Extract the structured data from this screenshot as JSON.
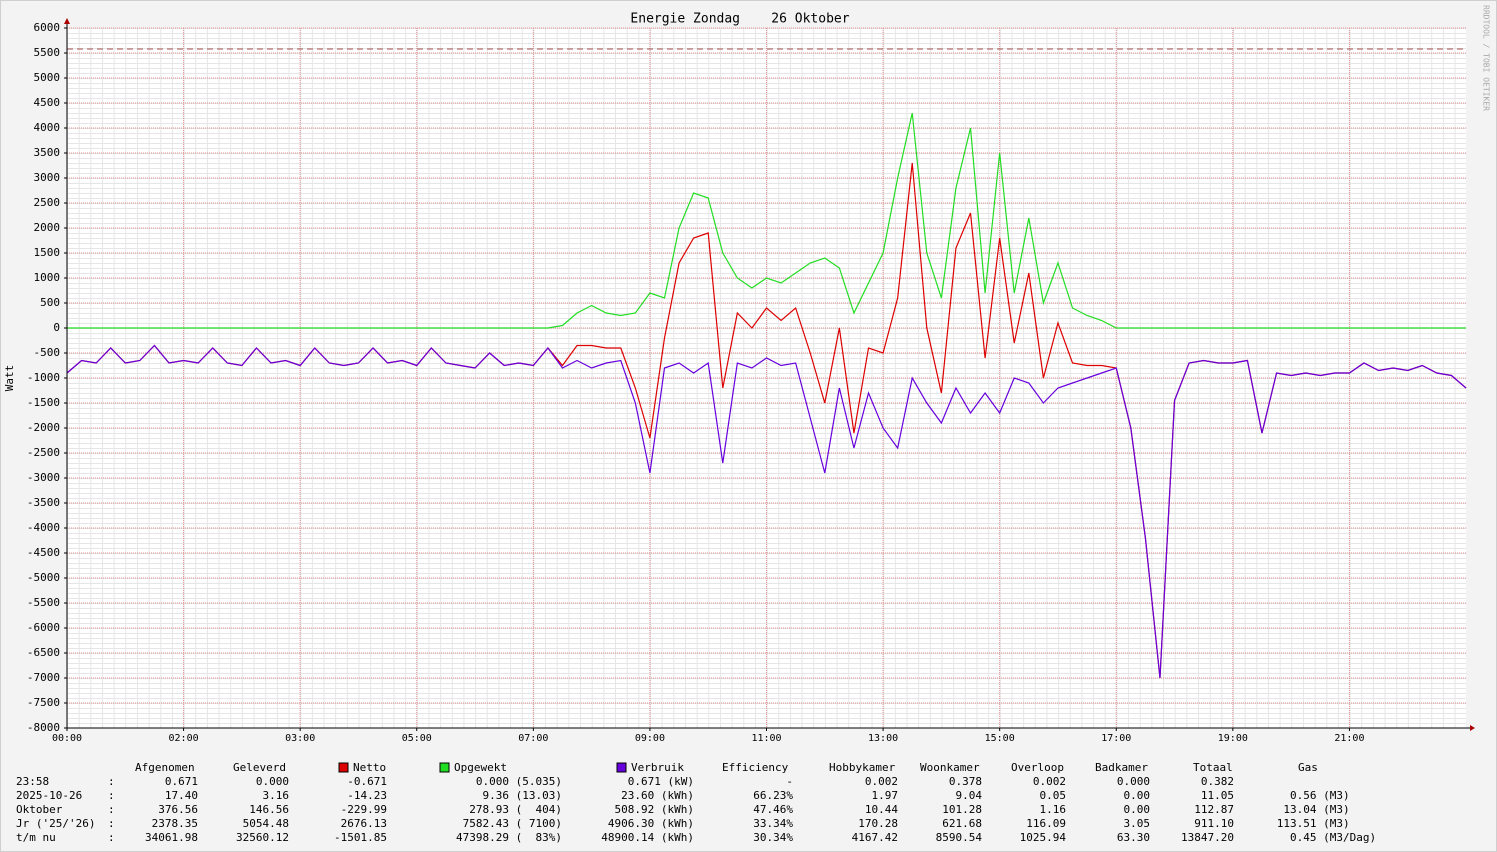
{
  "chart_data": {
    "type": "line",
    "title": "Energie Zondag    26 Oktober",
    "y_label": "Watt",
    "watermark": "RRDTOOL / TOBI OETIKER",
    "xlim": [
      0,
      24
    ],
    "xticks": [
      {
        "value": 0,
        "label": "00:00"
      },
      {
        "value": 2,
        "label": "02:00"
      },
      {
        "value": 4,
        "label": "03:00"
      },
      {
        "value": 6,
        "label": "05:00"
      },
      {
        "value": 8,
        "label": "07:00"
      },
      {
        "value": 10,
        "label": "09:00"
      },
      {
        "value": 12,
        "label": "11:00"
      },
      {
        "value": 14,
        "label": "13:00"
      },
      {
        "value": 16,
        "label": "15:00"
      },
      {
        "value": 18,
        "label": "17:00"
      },
      {
        "value": 20,
        "label": "19:00"
      },
      {
        "value": 22,
        "label": "21:00"
      }
    ],
    "ylim": [
      -8000,
      6000
    ],
    "yticks": [
      -8000,
      -7500,
      -7000,
      -6500,
      -6000,
      -5500,
      -5000,
      -4500,
      -4000,
      -3500,
      -3000,
      -2500,
      -2000,
      -1500,
      -1000,
      -500,
      0,
      500,
      1000,
      1500,
      2000,
      2500,
      3000,
      3500,
      4000,
      4500,
      5000,
      5500,
      6000
    ],
    "grid": true,
    "reference_line": 5580,
    "reference_color": "#a05050",
    "x": [
      0,
      0.25,
      0.5,
      0.75,
      1,
      1.25,
      1.5,
      1.75,
      2,
      2.25,
      2.5,
      2.75,
      3,
      3.25,
      3.5,
      3.75,
      4,
      4.25,
      4.5,
      4.75,
      5,
      5.25,
      5.5,
      5.75,
      6,
      6.25,
      6.5,
      6.75,
      7,
      7.25,
      7.5,
      7.75,
      8,
      8.25,
      8.5,
      8.75,
      9,
      9.25,
      9.5,
      9.75,
      10,
      10.25,
      10.5,
      10.75,
      11,
      11.25,
      11.5,
      11.75,
      12,
      12.25,
      12.5,
      12.75,
      13,
      13.25,
      13.5,
      13.75,
      14,
      14.25,
      14.5,
      14.75,
      15,
      15.25,
      15.5,
      15.75,
      16,
      16.25,
      16.5,
      16.75,
      17,
      17.25,
      17.5,
      17.75,
      18,
      18.25,
      18.5,
      18.75,
      19,
      19.25,
      19.5,
      19.75,
      20,
      20.25,
      20.5,
      20.75,
      21,
      21.25,
      21.5,
      21.75,
      22,
      22.25,
      22.5,
      22.75,
      23,
      23.25,
      23.5,
      23.75,
      24
    ],
    "series": [
      {
        "name": "Netto",
        "color": "#dd0000",
        "values": [
          -900,
          -650,
          -700,
          -400,
          -700,
          -650,
          -350,
          -700,
          -650,
          -700,
          -400,
          -700,
          -750,
          -400,
          -700,
          -650,
          -750,
          -400,
          -700,
          -750,
          -700,
          -400,
          -700,
          -650,
          -750,
          -400,
          -700,
          -750,
          -800,
          -500,
          -750,
          -700,
          -750,
          -400,
          -750,
          -350,
          -350,
          -400,
          -400,
          -1200,
          -2200,
          -200,
          1300,
          1800,
          1900,
          -1200,
          300,
          0,
          400,
          150,
          400,
          -500,
          -1500,
          0,
          -2100,
          -400,
          -500,
          600,
          3300,
          0,
          -1300,
          1600,
          2300,
          -600,
          1800,
          -300,
          1100,
          -1000,
          100,
          -700,
          -750,
          -750,
          -800,
          -2000,
          -4200,
          -7000,
          -1450,
          -700,
          -650,
          -700,
          -700,
          -650,
          -2100,
          -900,
          -950,
          -900,
          -950,
          -900,
          -900,
          -700,
          -850,
          -800,
          -850,
          -750,
          -900,
          -950,
          -1200
        ]
      },
      {
        "name": "Opgewekt",
        "color": "#22dd22",
        "values": [
          0,
          0,
          0,
          0,
          0,
          0,
          0,
          0,
          0,
          0,
          0,
          0,
          0,
          0,
          0,
          0,
          0,
          0,
          0,
          0,
          0,
          0,
          0,
          0,
          0,
          0,
          0,
          0,
          0,
          0,
          0,
          0,
          0,
          0,
          50,
          300,
          450,
          300,
          250,
          300,
          700,
          600,
          2000,
          2700,
          2600,
          1500,
          1000,
          800,
          1000,
          900,
          1100,
          1300,
          1400,
          1200,
          300,
          900,
          1500,
          3000,
          4300,
          1500,
          600,
          2800,
          4000,
          700,
          3500,
          700,
          2200,
          500,
          1300,
          400,
          250,
          150,
          0,
          0,
          0,
          0,
          0,
          0,
          0,
          0,
          0,
          0,
          0,
          0,
          0,
          0,
          0,
          0,
          0,
          0,
          0,
          0,
          0,
          0,
          0,
          0,
          0
        ]
      },
      {
        "name": "Verbruik",
        "color": "#6600dd",
        "values": [
          -900,
          -650,
          -700,
          -400,
          -700,
          -650,
          -350,
          -700,
          -650,
          -700,
          -400,
          -700,
          -750,
          -400,
          -700,
          -650,
          -750,
          -400,
          -700,
          -750,
          -700,
          -400,
          -700,
          -650,
          -750,
          -400,
          -700,
          -750,
          -800,
          -500,
          -750,
          -700,
          -750,
          -400,
          -800,
          -650,
          -800,
          -700,
          -650,
          -1500,
          -2900,
          -800,
          -700,
          -900,
          -700,
          -2700,
          -700,
          -800,
          -600,
          -750,
          -700,
          -1800,
          -2900,
          -1200,
          -2400,
          -1300,
          -2000,
          -2400,
          -1000,
          -1500,
          -1900,
          -1200,
          -1700,
          -1300,
          -1700,
          -1000,
          -1100,
          -1500,
          -1200,
          -1100,
          -1000,
          -900,
          -800,
          -2000,
          -4200,
          -7000,
          -1450,
          -700,
          -650,
          -700,
          -700,
          -650,
          -2100,
          -900,
          -950,
          -900,
          -950,
          -900,
          -900,
          -700,
          -850,
          -800,
          -850,
          -750,
          -900,
          -950,
          -1200
        ]
      }
    ],
    "table": {
      "columns": [
        "Afgenomen",
        "Geleverd",
        "Efficiency",
        "Hobbykamer",
        "Woonkamer",
        "Overloop",
        "Badkamer",
        "Totaal",
        "Gas"
      ],
      "rows": [
        [
          "23:58",
          ":",
          "0.671",
          "0.000",
          "-0.671",
          "0.000 (5.035)",
          "0.671 (kW)",
          "-",
          "0.002",
          "0.378",
          "0.002",
          "0.000",
          "0.382"
        ],
        [
          "2025-10-26",
          ":",
          "17.40",
          "3.16",
          "-14.23",
          "9.36 (13.03)",
          "23.60 (kWh)",
          "66.23%",
          "1.97",
          "9.04",
          "0.05",
          "0.00",
          "11.05",
          "0.56 (M3)"
        ],
        [
          "Oktober",
          ":",
          "376.56",
          "146.56",
          "-229.99",
          "278.93 (  404)",
          "508.92 (kWh)",
          "47.46%",
          "10.44",
          "101.28",
          "1.16",
          "0.00",
          "112.87",
          "13.04 (M3)"
        ],
        [
          "Jr ('25/'26)",
          ":",
          "2378.35",
          "5054.48",
          "2676.13",
          "7582.43 ( 7100)",
          "4906.30 (kWh)",
          "33.34%",
          "170.28",
          "621.68",
          "116.09",
          "3.05",
          "911.10",
          "113.51 (M3)"
        ],
        [
          "t/m nu",
          ":",
          "34061.98",
          "32560.12",
          "-1501.85",
          "47398.29 (  83%)",
          "48900.14 (kWh)",
          "30.34%",
          "4167.42",
          "8590.54",
          "1025.94",
          "63.30",
          "13847.20",
          "0.45 (M3/Dag)"
        ]
      ]
    }
  }
}
